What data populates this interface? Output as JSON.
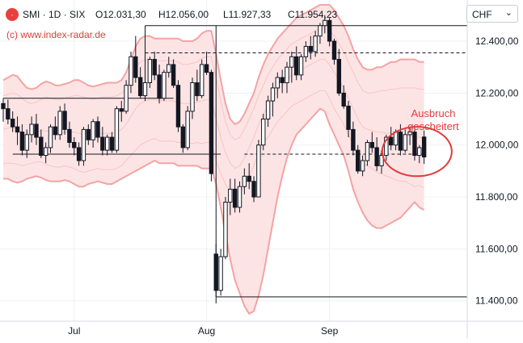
{
  "header": {
    "symbol_line": "SMI · 1D · SIX",
    "ohlc": [
      {
        "key": "O",
        "value": "12.031,30"
      },
      {
        "key": "H",
        "value": "12.056,00"
      },
      {
        "key": "L",
        "value": "11.927,33"
      },
      {
        "key": "C",
        "value": "11.954,23"
      }
    ],
    "credit": "(c) www.index-radar.de",
    "currency": "CHF",
    "logo_text": "-"
  },
  "colors": {
    "band_fill": "#fde4e4",
    "band_outer": "#f4a3a3",
    "band_inner": "#f8c3c3",
    "annotation": "#e03c3c",
    "candle": "#131722",
    "grid": "#eef0f4"
  },
  "chart_data": {
    "type": "candlestick",
    "y_ticks": [
      "12.400,00",
      "12.200,00",
      "12.000,00",
      "11.800,00",
      "11.600,00",
      "11.400,00"
    ],
    "y_tick_values": [
      12400,
      12200,
      12000,
      11800,
      11600,
      11400
    ],
    "ylim": [
      11340,
      12540
    ],
    "x_tick_labels": [
      {
        "label": "Jul",
        "index": 15
      },
      {
        "label": "Aug",
        "index": 43
      },
      {
        "label": "Sep",
        "index": 69
      }
    ],
    "candles": [
      [
        12160,
        12180,
        12090,
        12140
      ],
      [
        12140,
        12175,
        12080,
        12100
      ],
      [
        12100,
        12130,
        12050,
        12070
      ],
      [
        12070,
        12110,
        12000,
        12050
      ],
      [
        12050,
        12080,
        11960,
        11980
      ],
      [
        11980,
        12060,
        11950,
        12040
      ],
      [
        12040,
        12110,
        12010,
        12080
      ],
      [
        12080,
        12120,
        12000,
        12030
      ],
      [
        12030,
        12060,
        11950,
        11960
      ],
      [
        11960,
        12010,
        11930,
        11990
      ],
      [
        11990,
        12080,
        11970,
        12070
      ],
      [
        12070,
        12110,
        12020,
        12040
      ],
      [
        12040,
        12150,
        12020,
        12130
      ],
      [
        12130,
        12160,
        12040,
        12060
      ],
      [
        12060,
        12090,
        11990,
        12010
      ],
      [
        12010,
        12030,
        11960,
        11990
      ],
      [
        11990,
        12010,
        11920,
        11940
      ],
      [
        11940,
        12070,
        11920,
        12060
      ],
      [
        12060,
        12080,
        12000,
        12020
      ],
      [
        12020,
        12100,
        11990,
        12090
      ],
      [
        12090,
        12110,
        12010,
        12030
      ],
      [
        12030,
        12070,
        11960,
        11980
      ],
      [
        11980,
        12040,
        11960,
        12030
      ],
      [
        12030,
        12050,
        11970,
        11980
      ],
      [
        11980,
        12150,
        11970,
        12140
      ],
      [
        12140,
        12170,
        12090,
        12130
      ],
      [
        12130,
        12250,
        12120,
        12230
      ],
      [
        12230,
        12360,
        12200,
        12340
      ],
      [
        12340,
        12420,
        12240,
        12260
      ],
      [
        12260,
        12300,
        12180,
        12190
      ],
      [
        12190,
        12260,
        12170,
        12240
      ],
      [
        12240,
        12340,
        12220,
        12330
      ],
      [
        12330,
        12360,
        12250,
        12270
      ],
      [
        12270,
        12310,
        12160,
        12180
      ],
      [
        12180,
        12290,
        12170,
        12280
      ],
      [
        12280,
        12340,
        12260,
        12310
      ],
      [
        12310,
        12330,
        12220,
        12230
      ],
      [
        12230,
        12250,
        12050,
        12070
      ],
      [
        12070,
        12080,
        11970,
        11990
      ],
      [
        11990,
        12150,
        11980,
        12130
      ],
      [
        12130,
        12260,
        12100,
        12240
      ],
      [
        12240,
        12290,
        12170,
        12190
      ],
      [
        12190,
        12330,
        12180,
        12310
      ],
      [
        12310,
        12360,
        12270,
        12280
      ],
      [
        12280,
        12290,
        11860,
        11890
      ],
      [
        11580,
        11620,
        11390,
        11440
      ],
      [
        11440,
        11600,
        11420,
        11570
      ],
      [
        11570,
        11800,
        11560,
        11780
      ],
      [
        11780,
        11870,
        11730,
        11830
      ],
      [
        11830,
        11870,
        11740,
        11760
      ],
      [
        11760,
        11860,
        11740,
        11840
      ],
      [
        11840,
        11910,
        11810,
        11880
      ],
      [
        11880,
        11930,
        11830,
        11860
      ],
      [
        11860,
        11880,
        11780,
        11800
      ],
      [
        11800,
        12020,
        11800,
        12000
      ],
      [
        12000,
        12120,
        11980,
        12100
      ],
      [
        12100,
        12190,
        12070,
        12170
      ],
      [
        12170,
        12240,
        12110,
        12220
      ],
      [
        12220,
        12280,
        12180,
        12260
      ],
      [
        12260,
        12290,
        12200,
        12240
      ],
      [
        12240,
        12320,
        12200,
        12300
      ],
      [
        12300,
        12360,
        12240,
        12340
      ],
      [
        12340,
        12380,
        12250,
        12270
      ],
      [
        12270,
        12350,
        12250,
        12340
      ],
      [
        12340,
        12400,
        12320,
        12380
      ],
      [
        12380,
        12420,
        12330,
        12360
      ],
      [
        12360,
        12440,
        12340,
        12420
      ],
      [
        12420,
        12470,
        12390,
        12460
      ],
      [
        12460,
        12500,
        12430,
        12480
      ],
      [
        12480,
        12490,
        12380,
        12400
      ],
      [
        12400,
        12410,
        12310,
        12330
      ],
      [
        12330,
        12370,
        12190,
        12200
      ],
      [
        12200,
        12230,
        12140,
        12150
      ],
      [
        12150,
        12170,
        12030,
        12060
      ],
      [
        12060,
        12090,
        11960,
        11980
      ],
      [
        11980,
        12000,
        11890,
        11900
      ],
      [
        11900,
        11960,
        11880,
        11940
      ],
      [
        11940,
        12020,
        11920,
        12010
      ],
      [
        12010,
        12050,
        11970,
        11990
      ],
      [
        11990,
        12030,
        11900,
        11920
      ],
      [
        11920,
        11980,
        11890,
        11960
      ],
      [
        11960,
        12040,
        11940,
        12030
      ],
      [
        12030,
        12070,
        11980,
        12000
      ],
      [
        12000,
        12060,
        11980,
        12050
      ],
      [
        12050,
        12080,
        11960,
        11980
      ],
      [
        11980,
        12060,
        11970,
        12040
      ],
      [
        12040,
        12070,
        12000,
        12050
      ],
      [
        12050,
        12060,
        11940,
        11960
      ],
      [
        11960,
        12000,
        11930,
        11990
      ],
      [
        12031,
        12056,
        11927,
        11954
      ]
    ],
    "bands": {
      "upper_outer": [
        12250,
        12260,
        12270,
        12265,
        12240,
        12220,
        12215,
        12220,
        12235,
        12245,
        12240,
        12230,
        12230,
        12235,
        12240,
        12250,
        12250,
        12240,
        12230,
        12225,
        12230,
        12235,
        12240,
        12240,
        12240,
        12250,
        12280,
        12330,
        12380,
        12410,
        12420,
        12420,
        12410,
        12410,
        12410,
        12410,
        12410,
        12410,
        12400,
        12400,
        12400,
        12410,
        12430,
        12440,
        12440,
        12350,
        12250,
        12160,
        12100,
        12080,
        12090,
        12120,
        12160,
        12200,
        12260,
        12310,
        12350,
        12380,
        12410,
        12430,
        12450,
        12470,
        12490,
        12500,
        12510,
        12520,
        12530,
        12540,
        12540,
        12540,
        12520,
        12490,
        12460,
        12420,
        12370,
        12330,
        12300,
        12290,
        12290,
        12300,
        12300,
        12310,
        12320,
        12320,
        12330,
        12330,
        12330,
        12330,
        12320,
        12320
      ],
      "upper_inner": [
        12190,
        12195,
        12200,
        12195,
        12180,
        12165,
        12160,
        12165,
        12175,
        12185,
        12180,
        12175,
        12175,
        12180,
        12185,
        12190,
        12190,
        12185,
        12180,
        12175,
        12180,
        12185,
        12185,
        12185,
        12190,
        12200,
        12220,
        12260,
        12300,
        12320,
        12330,
        12330,
        12325,
        12325,
        12325,
        12325,
        12325,
        12320,
        12310,
        12310,
        12315,
        12320,
        12335,
        12340,
        12340,
        12260,
        12170,
        12090,
        12040,
        12020,
        12030,
        12060,
        12100,
        12140,
        12190,
        12230,
        12270,
        12300,
        12330,
        12350,
        12370,
        12390,
        12400,
        12410,
        12420,
        12430,
        12440,
        12450,
        12450,
        12440,
        12420,
        12390,
        12360,
        12320,
        12280,
        12240,
        12210,
        12200,
        12200,
        12205,
        12210,
        12210,
        12215,
        12215,
        12220,
        12220,
        12220,
        12220,
        12215,
        12215
      ],
      "middle": [
        12060,
        12065,
        12065,
        12060,
        12050,
        12045,
        12045,
        12050,
        12055,
        12055,
        12050,
        12045,
        12045,
        12050,
        12050,
        12050,
        12045,
        12040,
        12040,
        12040,
        12045,
        12045,
        12045,
        12045,
        12050,
        12060,
        12080,
        12110,
        12140,
        12160,
        12170,
        12175,
        12175,
        12170,
        12170,
        12170,
        12170,
        12165,
        12160,
        12160,
        12160,
        12165,
        12170,
        12175,
        12175,
        12100,
        12030,
        11970,
        11930,
        11910,
        11920,
        11950,
        11990,
        12030,
        12080,
        12120,
        12150,
        12180,
        12210,
        12230,
        12250,
        12270,
        12280,
        12290,
        12300,
        12310,
        12320,
        12330,
        12330,
        12310,
        12280,
        12250,
        12220,
        12180,
        12140,
        12100,
        12070,
        12060,
        12055,
        12050,
        12050,
        12045,
        12045,
        12040,
        12040,
        12040,
        12035,
        12030,
        12030,
        12025
      ],
      "lower_inner": [
        11930,
        11930,
        11930,
        11925,
        11920,
        11925,
        11930,
        11935,
        11935,
        11925,
        11920,
        11915,
        11915,
        11920,
        11915,
        11910,
        11900,
        11895,
        11900,
        11905,
        11910,
        11905,
        11905,
        11905,
        11910,
        11920,
        11940,
        11960,
        11980,
        12000,
        12010,
        12020,
        12025,
        12015,
        12015,
        12015,
        12015,
        12010,
        12010,
        12010,
        12005,
        12010,
        12005,
        12010,
        12010,
        11940,
        11890,
        11850,
        11820,
        11800,
        11810,
        11840,
        11880,
        11920,
        11970,
        12010,
        12030,
        12060,
        12090,
        12110,
        12130,
        12150,
        12160,
        12170,
        12180,
        12190,
        12200,
        12210,
        12210,
        12180,
        12140,
        12110,
        12080,
        12040,
        12000,
        11960,
        11930,
        11920,
        11910,
        11895,
        11890,
        11880,
        11875,
        11865,
        11860,
        11860,
        11850,
        11840,
        11845,
        11835
      ],
      "lower_outer": [
        11870,
        11870,
        11860,
        11855,
        11860,
        11870,
        11875,
        11880,
        11875,
        11865,
        11860,
        11860,
        11860,
        11865,
        11860,
        11850,
        11840,
        11840,
        11850,
        11855,
        11860,
        11855,
        11850,
        11850,
        11860,
        11870,
        11880,
        11890,
        11900,
        11910,
        11920,
        11930,
        11940,
        11930,
        11930,
        11930,
        11930,
        11920,
        11920,
        11920,
        11920,
        11920,
        11910,
        11910,
        11910,
        11850,
        11760,
        11660,
        11560,
        11480,
        11430,
        11380,
        11350,
        11360,
        11420,
        11500,
        11600,
        11700,
        11800,
        11880,
        11950,
        12000,
        12040,
        12060,
        12080,
        12100,
        12120,
        12140,
        12130,
        12080,
        12040,
        12000,
        11960,
        11900,
        11830,
        11780,
        11740,
        11710,
        11690,
        11680,
        11680,
        11690,
        11700,
        11710,
        11720,
        11740,
        11760,
        11780,
        11760,
        11750
      ]
    },
    "levels": [
      {
        "price": 12460,
        "from": 30,
        "to": 99,
        "style": "solid"
      },
      {
        "price": 12355,
        "from": 30,
        "to": 99,
        "style": "dashed"
      },
      {
        "price": 12180,
        "from": 0,
        "to": 36,
        "style": "solid"
      },
      {
        "price": 11965,
        "from": 2,
        "to": 46,
        "style": "solid"
      },
      {
        "price": 11965,
        "from": 51,
        "to": 89,
        "style": "dashed"
      },
      {
        "price": 11415,
        "from": 45,
        "to": 99,
        "style": "solid"
      }
    ],
    "vlines": [
      {
        "index": 45,
        "from": 12460,
        "to": 11415
      },
      {
        "index": 30,
        "from": 12460,
        "to": 12180
      }
    ],
    "annotation": {
      "text_lines": [
        "Ausbruch",
        "gescheitert"
      ],
      "ellipse_center_index": 87.5,
      "ellipse_center_price": 11975,
      "ellipse_half_width_bars": 7,
      "ellipse_half_height_price": 95
    }
  }
}
